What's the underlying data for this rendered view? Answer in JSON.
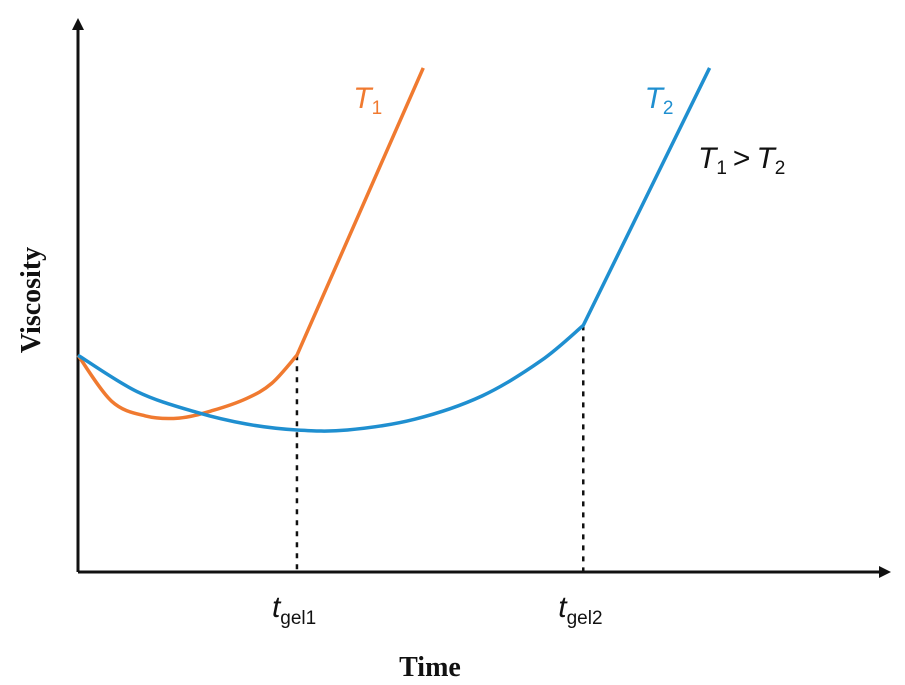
{
  "chart_data": {
    "type": "line",
    "xlabel": "Time",
    "ylabel": "Viscosity",
    "annotation": {
      "left": "T",
      "left_sub": "1",
      "op": ">",
      "right": "T",
      "right_sub": "2"
    },
    "ticks": [
      {
        "main": "t",
        "sub": "gel1",
        "x": 2.6
      },
      {
        "main": "t",
        "sub": "gel2",
        "x": 6.0
      }
    ],
    "xlim": [
      0,
      9.5
    ],
    "ylim": [
      0,
      10
    ],
    "grid": false,
    "colors": {
      "T1": "#f07a30",
      "T2": "#1f8fd0",
      "axis": "#111111",
      "text": "#111111"
    },
    "series": [
      {
        "name": "T",
        "name_sub": "1",
        "color": "#f07a30",
        "points": [
          [
            0,
            4.0
          ],
          [
            0.4,
            3.15
          ],
          [
            0.8,
            2.88
          ],
          [
            1.2,
            2.84
          ],
          [
            1.6,
            2.98
          ],
          [
            2.0,
            3.2
          ],
          [
            2.3,
            3.48
          ],
          [
            2.6,
            4.0
          ],
          [
            4.1,
            9.3
          ]
        ]
      },
      {
        "name": "T",
        "name_sub": "2",
        "color": "#1f8fd0",
        "points": [
          [
            0,
            4.0
          ],
          [
            0.7,
            3.33
          ],
          [
            1.4,
            2.95
          ],
          [
            2.0,
            2.73
          ],
          [
            2.6,
            2.62
          ],
          [
            3.2,
            2.62
          ],
          [
            4.0,
            2.82
          ],
          [
            4.8,
            3.25
          ],
          [
            5.5,
            3.9
          ],
          [
            6.0,
            4.55
          ],
          [
            7.5,
            9.3
          ]
        ]
      }
    ]
  }
}
